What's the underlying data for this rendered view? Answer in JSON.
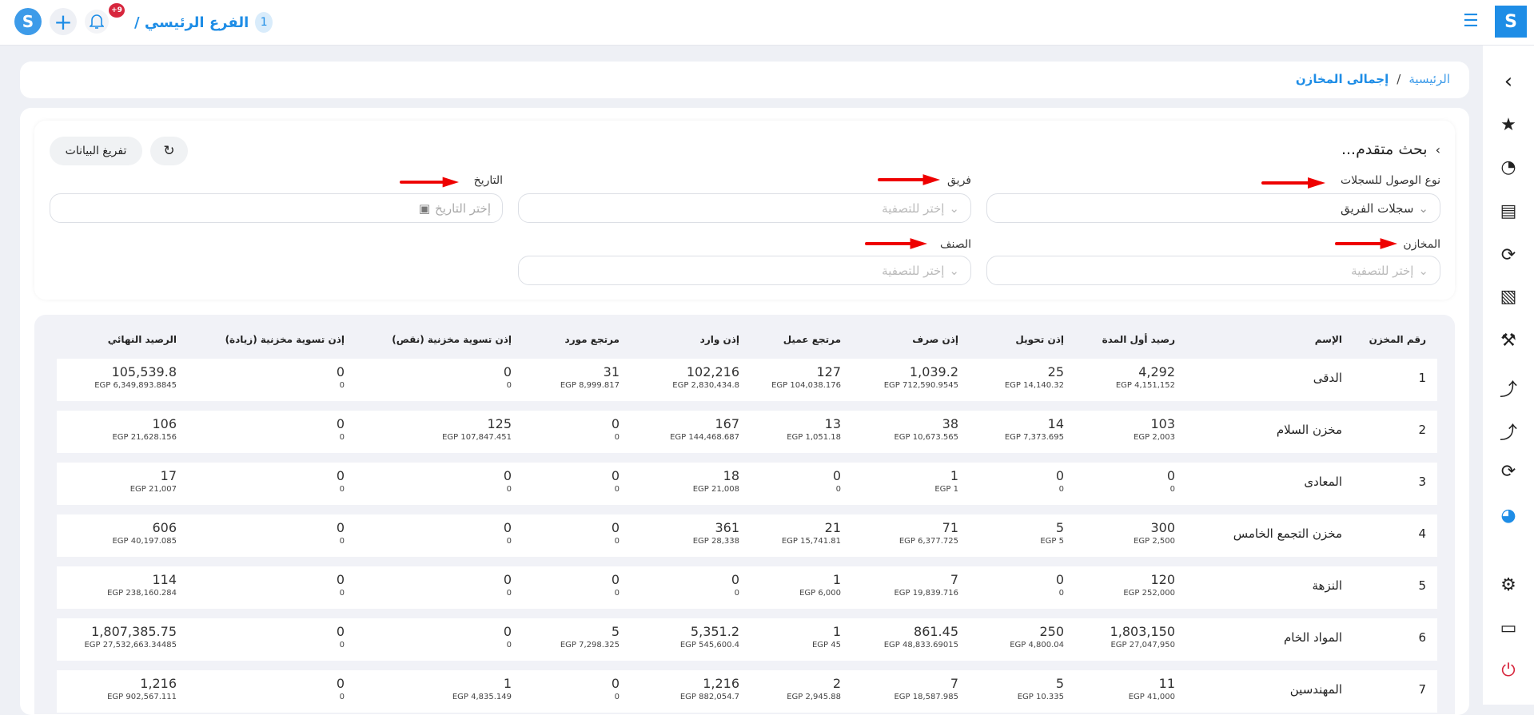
{
  "header": {
    "branch": "الفرع الرئيسي /",
    "branch_number": "1",
    "notification_badge": "+9"
  },
  "breadcrumb": {
    "home": "الرئيسية",
    "separator": "/",
    "current": "إجمالى المخازن"
  },
  "filters": {
    "title": "بحث متقدم...",
    "export_label": "تفريغ البيانات",
    "access_type": {
      "label": "نوع الوصول للسجلات",
      "value": "سجلات الفريق"
    },
    "team": {
      "label": "فريق",
      "placeholder": "إختر للتصفية"
    },
    "date": {
      "label": "التاريخ",
      "placeholder": "إختر التاريخ"
    },
    "warehouses": {
      "label": "المخازن",
      "placeholder": "إختر للتصفية"
    },
    "category": {
      "label": "الصنف",
      "placeholder": "إختر للتصفية"
    }
  },
  "table": {
    "columns": [
      "رقم المخزن",
      "الإسم",
      "رصيد أول المدة",
      "إذن تحويل",
      "إذن صرف",
      "مرتجع عميل",
      "إذن وارد",
      "مرتجع مورد",
      "إذن تسوية مخزنية (نقص)",
      "إذن تسوية مخزنية (زيادة)",
      "الرصيد النهائي"
    ],
    "rows": [
      {
        "id": "1",
        "name": "الدقى",
        "cells": [
          [
            "4,292",
            "EGP 4,151,152"
          ],
          [
            "25",
            "EGP 14,140.32"
          ],
          [
            "1,039.2",
            "EGP 712,590.9545"
          ],
          [
            "127",
            "EGP 104,038.176"
          ],
          [
            "102,216",
            "EGP 2,830,434.8"
          ],
          [
            "31",
            "EGP 8,999.817"
          ],
          [
            "0",
            "0"
          ],
          [
            "0",
            "0"
          ],
          [
            "105,539.8",
            "EGP 6,349,893.8845"
          ]
        ]
      },
      {
        "id": "2",
        "name": "مخزن السلام",
        "cells": [
          [
            "103",
            "EGP 2,003"
          ],
          [
            "14",
            "EGP 7,373.695"
          ],
          [
            "38",
            "EGP 10,673.565"
          ],
          [
            "13",
            "EGP 1,051.18"
          ],
          [
            "167",
            "EGP 144,468.687"
          ],
          [
            "0",
            "0"
          ],
          [
            "125",
            "EGP 107,847.451"
          ],
          [
            "0",
            "0"
          ],
          [
            "106",
            "EGP 21,628.156"
          ]
        ]
      },
      {
        "id": "3",
        "name": "المعادى",
        "cells": [
          [
            "0",
            "0"
          ],
          [
            "0",
            "0"
          ],
          [
            "1",
            "EGP 1"
          ],
          [
            "0",
            "0"
          ],
          [
            "18",
            "EGP 21,008"
          ],
          [
            "0",
            "0"
          ],
          [
            "0",
            "0"
          ],
          [
            "0",
            "0"
          ],
          [
            "17",
            "EGP 21,007"
          ]
        ]
      },
      {
        "id": "4",
        "name": "مخزن التجمع الخامس",
        "cells": [
          [
            "300",
            "EGP 2,500"
          ],
          [
            "5",
            "EGP 5"
          ],
          [
            "71",
            "EGP 6,377.725"
          ],
          [
            "21",
            "EGP 15,741.81"
          ],
          [
            "361",
            "EGP 28,338"
          ],
          [
            "0",
            "0"
          ],
          [
            "0",
            "0"
          ],
          [
            "0",
            "0"
          ],
          [
            "606",
            "EGP 40,197.085"
          ]
        ]
      },
      {
        "id": "5",
        "name": "النزهة",
        "cells": [
          [
            "120",
            "EGP 252,000"
          ],
          [
            "0",
            "0"
          ],
          [
            "7",
            "EGP 19,839.716"
          ],
          [
            "1",
            "EGP 6,000"
          ],
          [
            "0",
            "0"
          ],
          [
            "0",
            "0"
          ],
          [
            "0",
            "0"
          ],
          [
            "0",
            "0"
          ],
          [
            "114",
            "EGP 238,160.284"
          ]
        ]
      },
      {
        "id": "6",
        "name": "المواد الخام",
        "cells": [
          [
            "1,803,150",
            "EGP 27,047,950"
          ],
          [
            "250",
            "EGP 4,800.04"
          ],
          [
            "861.45",
            "EGP 48,833.69015"
          ],
          [
            "1",
            "EGP 45"
          ],
          [
            "5,351.2",
            "EGP 545,600.4"
          ],
          [
            "5",
            "EGP 7,298.325"
          ],
          [
            "0",
            "0"
          ],
          [
            "0",
            "0"
          ],
          [
            "1,807,385.75",
            "EGP 27,532,663.34485"
          ]
        ]
      },
      {
        "id": "7",
        "name": "المهندسين",
        "cells": [
          [
            "11",
            "EGP 41,000"
          ],
          [
            "5",
            "EGP 10.335"
          ],
          [
            "7",
            "EGP 18,587.985"
          ],
          [
            "2",
            "EGP 2,945.88"
          ],
          [
            "1,216",
            "EGP 882,054.7"
          ],
          [
            "0",
            "0"
          ],
          [
            "1",
            "EGP 4,835.149"
          ],
          [
            "0",
            "0"
          ],
          [
            "1,216",
            "EGP 902,567.111"
          ]
        ]
      }
    ]
  },
  "colors": {
    "accent": "#1e8de6",
    "badge": "#d7263d",
    "arrow": "#ee0000",
    "power": "#d7263d"
  }
}
